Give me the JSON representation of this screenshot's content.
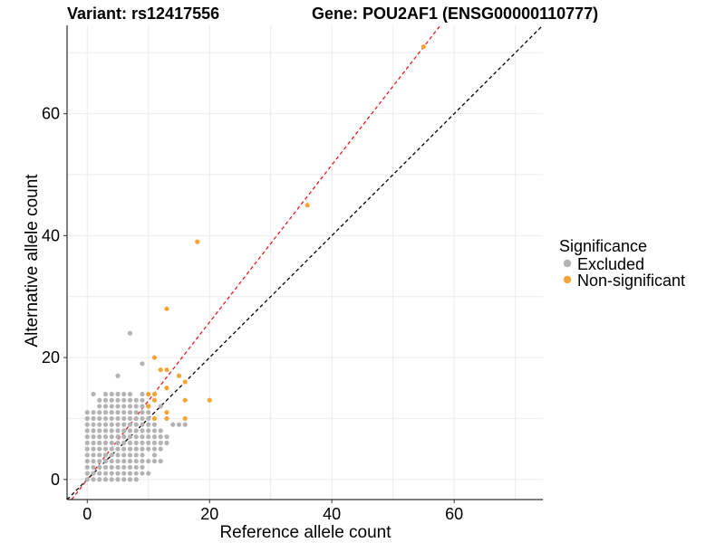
{
  "chart_data": {
    "type": "scatter",
    "title_left": "Variant: rs12417556",
    "title_right": "Gene: POU2AF1 (ENSG00000110777)",
    "xlabel": "Reference allele count",
    "ylabel": "Alternative allele count",
    "xlim": [
      -3.3,
      74.5
    ],
    "ylim": [
      -3.3,
      74.5
    ],
    "xticks": [
      0,
      20,
      40,
      60
    ],
    "yticks": [
      0,
      20,
      40,
      60
    ],
    "grid": true,
    "legend": {
      "title": "Significance",
      "position": "right",
      "entries": [
        {
          "label": "Excluded",
          "color": "#b3b3b3"
        },
        {
          "label": "Non-significant",
          "color": "#f7a436"
        }
      ]
    },
    "reference_lines": [
      {
        "type": "identity",
        "slope": 1,
        "intercept": 0,
        "color": "#000000",
        "dash": true
      },
      {
        "type": "fitted",
        "slope": 1.29,
        "intercept": 0,
        "color": "#e41a1c",
        "dash": true
      }
    ],
    "series": [
      {
        "name": "Excluded",
        "color": "#b3b3b3",
        "points": [
          [
            0,
            0
          ],
          [
            0,
            1
          ],
          [
            0,
            2
          ],
          [
            0,
            3
          ],
          [
            0,
            4
          ],
          [
            0,
            5
          ],
          [
            0,
            6
          ],
          [
            0,
            7
          ],
          [
            0,
            8
          ],
          [
            0,
            9
          ],
          [
            0,
            10
          ],
          [
            0,
            11
          ],
          [
            1,
            0
          ],
          [
            1,
            1
          ],
          [
            1,
            2
          ],
          [
            1,
            3
          ],
          [
            1,
            4
          ],
          [
            1,
            5
          ],
          [
            1,
            6
          ],
          [
            1,
            7
          ],
          [
            1,
            8
          ],
          [
            1,
            9
          ],
          [
            1,
            10
          ],
          [
            1,
            11
          ],
          [
            1,
            14
          ],
          [
            2,
            0
          ],
          [
            2,
            1
          ],
          [
            2,
            2
          ],
          [
            2,
            3
          ],
          [
            2,
            4
          ],
          [
            2,
            5
          ],
          [
            2,
            6
          ],
          [
            2,
            7
          ],
          [
            2,
            8
          ],
          [
            2,
            9
          ],
          [
            2,
            10
          ],
          [
            2,
            11
          ],
          [
            2,
            12
          ],
          [
            2,
            13
          ],
          [
            3,
            0
          ],
          [
            3,
            1
          ],
          [
            3,
            2
          ],
          [
            3,
            3
          ],
          [
            3,
            4
          ],
          [
            3,
            5
          ],
          [
            3,
            6
          ],
          [
            3,
            7
          ],
          [
            3,
            8
          ],
          [
            3,
            9
          ],
          [
            3,
            10
          ],
          [
            3,
            11
          ],
          [
            3,
            12
          ],
          [
            3,
            13
          ],
          [
            3,
            14
          ],
          [
            4,
            0
          ],
          [
            4,
            1
          ],
          [
            4,
            2
          ],
          [
            4,
            3
          ],
          [
            4,
            4
          ],
          [
            4,
            5
          ],
          [
            4,
            6
          ],
          [
            4,
            7
          ],
          [
            4,
            8
          ],
          [
            4,
            9
          ],
          [
            4,
            10
          ],
          [
            4,
            11
          ],
          [
            4,
            12
          ],
          [
            4,
            13
          ],
          [
            4,
            14
          ],
          [
            5,
            0
          ],
          [
            5,
            1
          ],
          [
            5,
            2
          ],
          [
            5,
            3
          ],
          [
            5,
            4
          ],
          [
            5,
            5
          ],
          [
            5,
            6
          ],
          [
            5,
            7
          ],
          [
            5,
            8
          ],
          [
            5,
            9
          ],
          [
            5,
            10
          ],
          [
            5,
            11
          ],
          [
            5,
            12
          ],
          [
            5,
            13
          ],
          [
            5,
            14
          ],
          [
            5,
            17
          ],
          [
            6,
            0
          ],
          [
            6,
            1
          ],
          [
            6,
            2
          ],
          [
            6,
            3
          ],
          [
            6,
            4
          ],
          [
            6,
            5
          ],
          [
            6,
            6
          ],
          [
            6,
            7
          ],
          [
            6,
            8
          ],
          [
            6,
            9
          ],
          [
            6,
            10
          ],
          [
            6,
            11
          ],
          [
            6,
            12
          ],
          [
            6,
            13
          ],
          [
            6,
            14
          ],
          [
            7,
            0
          ],
          [
            7,
            1
          ],
          [
            7,
            2
          ],
          [
            7,
            3
          ],
          [
            7,
            4
          ],
          [
            7,
            5
          ],
          [
            7,
            6
          ],
          [
            7,
            7
          ],
          [
            7,
            8
          ],
          [
            7,
            9
          ],
          [
            7,
            10
          ],
          [
            7,
            11
          ],
          [
            7,
            12
          ],
          [
            7,
            13
          ],
          [
            7,
            14
          ],
          [
            7,
            24
          ],
          [
            8,
            0
          ],
          [
            8,
            1
          ],
          [
            8,
            2
          ],
          [
            8,
            3
          ],
          [
            8,
            4
          ],
          [
            8,
            5
          ],
          [
            8,
            6
          ],
          [
            8,
            7
          ],
          [
            8,
            8
          ],
          [
            8,
            9
          ],
          [
            8,
            10
          ],
          [
            8,
            11
          ],
          [
            8,
            12
          ],
          [
            8,
            13
          ],
          [
            9,
            1
          ],
          [
            9,
            2
          ],
          [
            9,
            3
          ],
          [
            9,
            4
          ],
          [
            9,
            5
          ],
          [
            9,
            6
          ],
          [
            9,
            7
          ],
          [
            9,
            8
          ],
          [
            9,
            9
          ],
          [
            9,
            10
          ],
          [
            9,
            11
          ],
          [
            9,
            12
          ],
          [
            9,
            13
          ],
          [
            9,
            14
          ],
          [
            9,
            19
          ],
          [
            10,
            1
          ],
          [
            10,
            3
          ],
          [
            10,
            5
          ],
          [
            10,
            6
          ],
          [
            10,
            7
          ],
          [
            10,
            8
          ],
          [
            10,
            9
          ],
          [
            10,
            10
          ],
          [
            10,
            11
          ],
          [
            10,
            12
          ],
          [
            11,
            3
          ],
          [
            11,
            4
          ],
          [
            11,
            5
          ],
          [
            11,
            6
          ],
          [
            11,
            7
          ],
          [
            11,
            8
          ],
          [
            11,
            9
          ],
          [
            12,
            3
          ],
          [
            12,
            5
          ],
          [
            12,
            6
          ],
          [
            12,
            7
          ],
          [
            12,
            8
          ],
          [
            12,
            12
          ],
          [
            13,
            6
          ],
          [
            13,
            7
          ],
          [
            14,
            9
          ],
          [
            15,
            9
          ],
          [
            16,
            9
          ]
        ]
      },
      {
        "name": "Non-significant",
        "color": "#f7a436",
        "points": [
          [
            55,
            71
          ],
          [
            36,
            45
          ],
          [
            18,
            39
          ],
          [
            13,
            28
          ],
          [
            11,
            20
          ],
          [
            12,
            18
          ],
          [
            13,
            18
          ],
          [
            15,
            17
          ],
          [
            16,
            16
          ],
          [
            13,
            15
          ],
          [
            10,
            14
          ],
          [
            11,
            14
          ],
          [
            11,
            13
          ],
          [
            10,
            12
          ],
          [
            16,
            13
          ],
          [
            20,
            13
          ],
          [
            13,
            11
          ],
          [
            11,
            10
          ],
          [
            13,
            10
          ],
          [
            16,
            10
          ]
        ]
      }
    ]
  }
}
